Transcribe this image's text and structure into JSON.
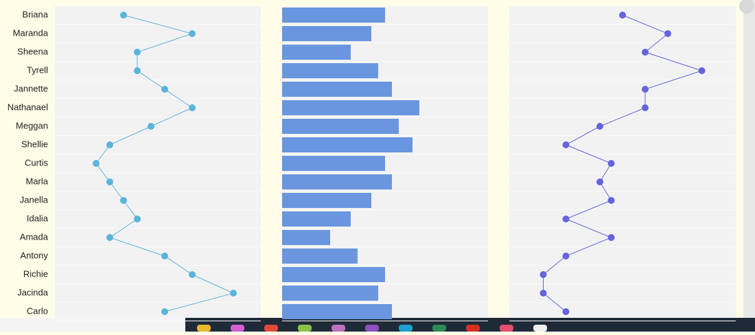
{
  "chart_data": [
    {
      "type": "line",
      "categories": [
        "Briana",
        "Maranda",
        "Sheena",
        "Tyrell",
        "Jannette",
        "Nathanael",
        "Meggan",
        "Shellie",
        "Curtis",
        "Marla",
        "Janella",
        "Idalia",
        "Amada",
        "Antony",
        "Richie",
        "Jacinda",
        "Carlo"
      ],
      "values": [
        5,
        10,
        6,
        6,
        8,
        10,
        7,
        4,
        3,
        4,
        5,
        6,
        4,
        8,
        10,
        13,
        8
      ],
      "xlim": [
        0,
        15
      ],
      "color": "#5ab4dc"
    },
    {
      "type": "bar",
      "values": [
        15,
        13,
        10,
        14,
        16,
        20,
        17,
        19,
        15,
        16,
        13,
        10,
        7,
        11,
        15,
        14,
        16
      ],
      "xlim": [
        0,
        30
      ],
      "color": "#6a96e0"
    },
    {
      "type": "line",
      "values": [
        10,
        14,
        12,
        17,
        12,
        12,
        8,
        5,
        9,
        8,
        9,
        5,
        9,
        5,
        3,
        3,
        5
      ],
      "xlim": [
        0,
        20
      ],
      "color": "#6464dc"
    }
  ]
}
